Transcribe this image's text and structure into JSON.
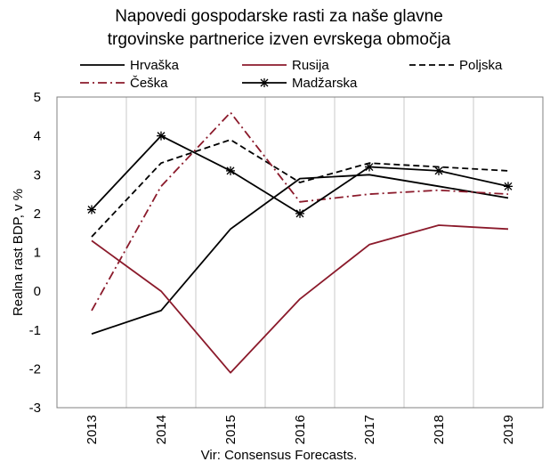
{
  "chart_data": {
    "type": "line",
    "title_lines": [
      "Napovedi gospodarske rasti za naše glavne",
      "trgovinske partnerice izven evrskega območja"
    ],
    "ylabel": "Realna rast BDP, v %",
    "source": "Vir: Consensus Forecasts.",
    "categories": [
      "2013",
      "2014",
      "2015",
      "2016",
      "2017",
      "2018",
      "2019"
    ],
    "ylim": [
      -3,
      5
    ],
    "yticks": [
      "5",
      "4",
      "3",
      "2",
      "1",
      "0",
      "-1",
      "-2",
      "-3"
    ],
    "grid": "vertical",
    "legend_position": "top",
    "series": [
      {
        "name": "Hrvaška",
        "color": "#000000",
        "style": "solid",
        "marker": "none",
        "values": [
          -1.1,
          -0.5,
          1.6,
          2.9,
          3.0,
          2.7,
          2.4
        ]
      },
      {
        "name": "Rusija",
        "color": "#8b1a2b",
        "style": "solid",
        "marker": "none",
        "values": [
          1.3,
          0.0,
          -2.1,
          -0.2,
          1.2,
          1.7,
          1.6
        ]
      },
      {
        "name": "Poljska",
        "color": "#000000",
        "style": "dashed",
        "marker": "none",
        "values": [
          1.4,
          3.3,
          3.9,
          2.8,
          3.3,
          3.2,
          3.1
        ]
      },
      {
        "name": "Češka",
        "color": "#8b1a2b",
        "style": "dashdot",
        "marker": "none",
        "values": [
          -0.5,
          2.7,
          4.6,
          2.3,
          2.5,
          2.6,
          2.5
        ]
      },
      {
        "name": "Madžarska",
        "color": "#000000",
        "style": "solid",
        "marker": "asterisk",
        "values": [
          2.1,
          4.0,
          3.1,
          2.0,
          3.2,
          3.1,
          2.7
        ]
      }
    ]
  }
}
